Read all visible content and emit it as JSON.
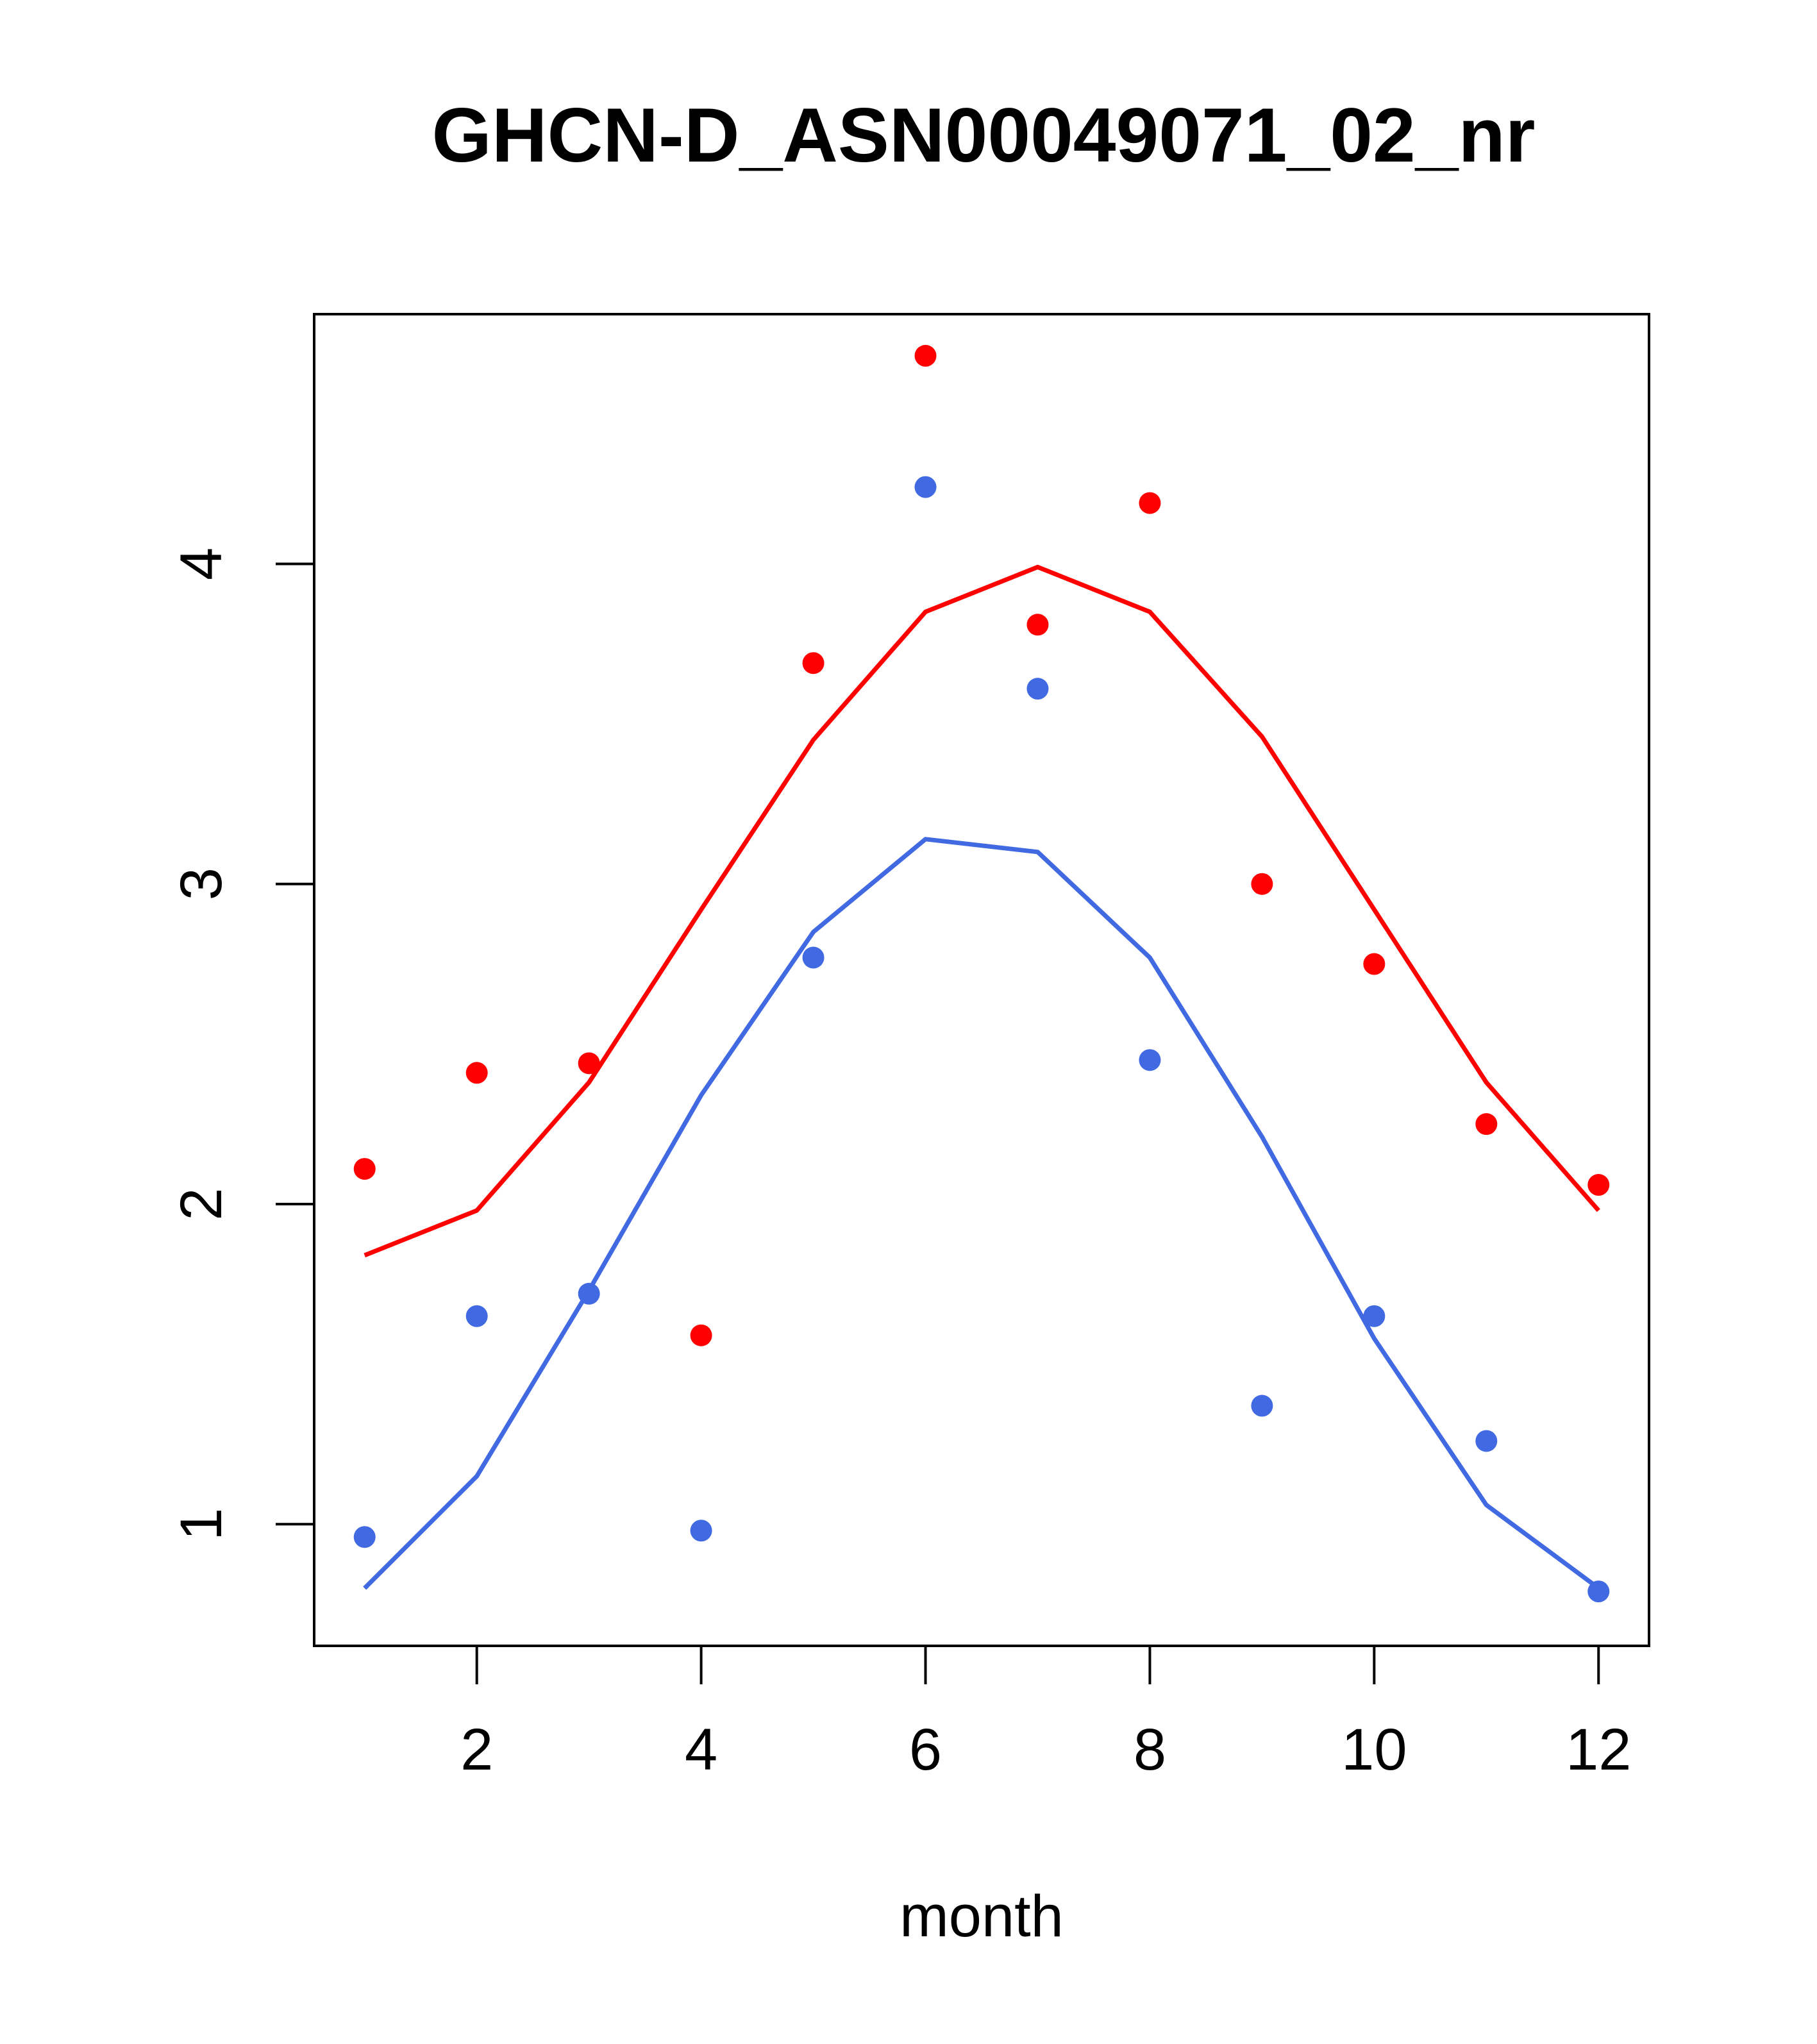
{
  "chart_data": {
    "type": "scatter",
    "title": "GHCN-D_ASN00049071_02_nr",
    "xlabel": "month",
    "ylabel": "",
    "xlim": [
      0.55,
      12.45
    ],
    "ylim": [
      0.62,
      4.78
    ],
    "xticks": [
      2,
      4,
      6,
      8,
      10,
      12
    ],
    "yticks": [
      1,
      2,
      3,
      4
    ],
    "grid": false,
    "legend": "none",
    "x": [
      1,
      2,
      3,
      4,
      5,
      6,
      7,
      8,
      9,
      10,
      11,
      12
    ],
    "series": [
      {
        "color": "#ff0000",
        "points": [
          2.11,
          2.41,
          2.44,
          1.59,
          3.69,
          4.65,
          3.81,
          4.19,
          3.0,
          2.75,
          2.25,
          2.06
        ],
        "line": [
          1.84,
          1.98,
          2.38,
          2.92,
          3.45,
          3.85,
          3.99,
          3.85,
          3.46,
          2.92,
          2.38,
          1.98
        ]
      },
      {
        "color": "#4169e1",
        "points": [
          0.96,
          1.65,
          1.72,
          0.98,
          2.77,
          4.24,
          3.61,
          2.45,
          1.37,
          1.65,
          1.26,
          0.79
        ],
        "line": [
          0.8,
          1.15,
          1.73,
          2.34,
          2.85,
          3.14,
          3.1,
          2.77,
          2.21,
          1.58,
          1.06,
          0.8
        ]
      }
    ]
  }
}
